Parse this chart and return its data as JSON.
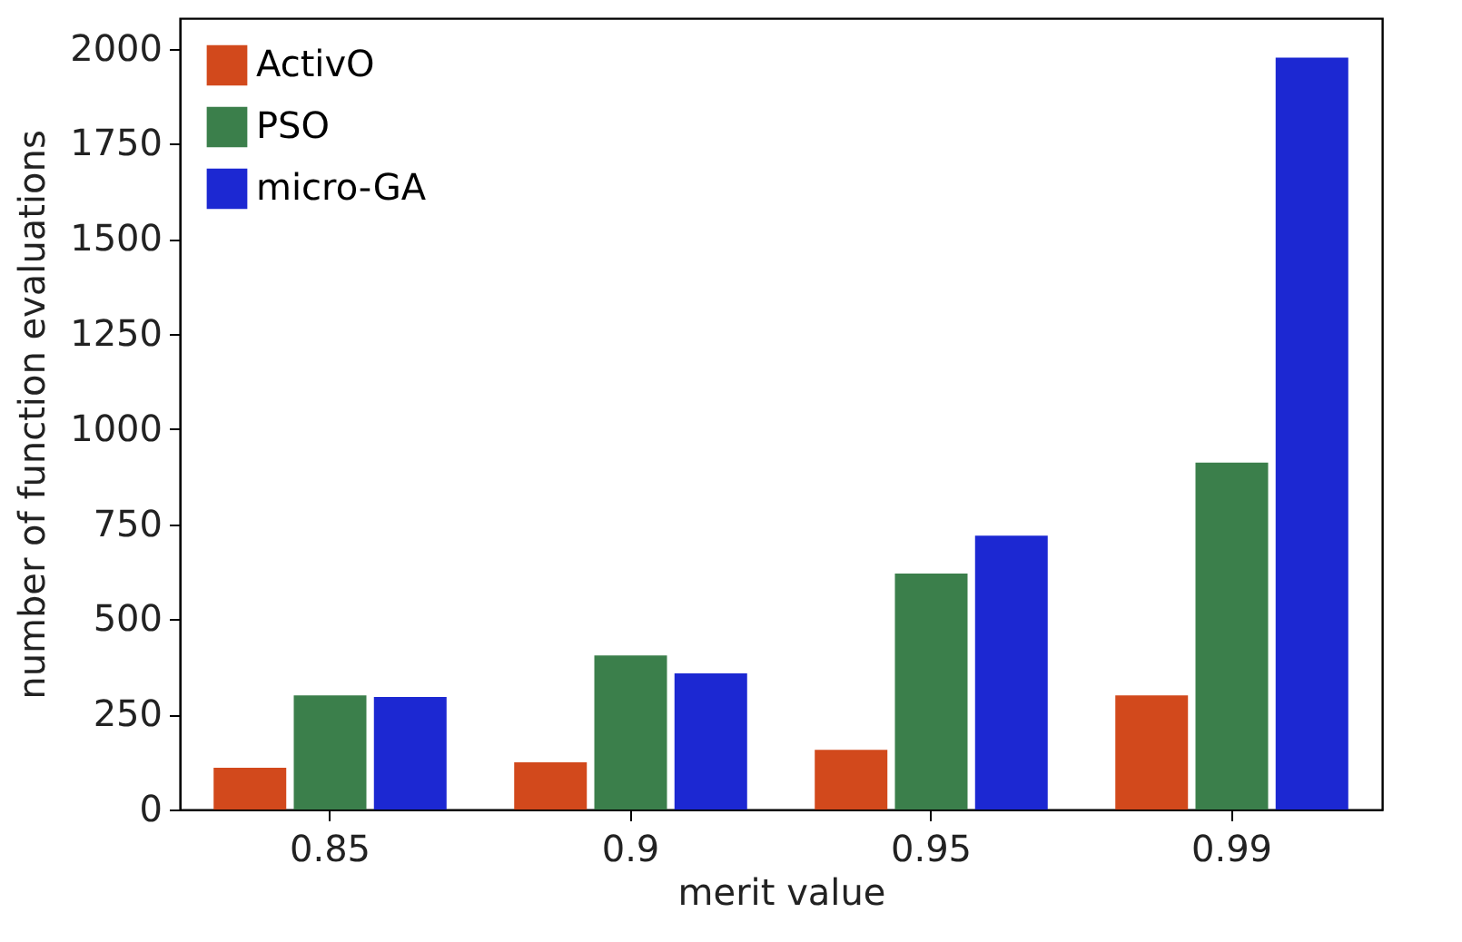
{
  "chart_data": {
    "type": "bar",
    "xlabel": "merit value",
    "ylabel": "number of function evaluations",
    "categories": [
      "0.85",
      "0.9",
      "0.95",
      "0.99"
    ],
    "series": [
      {
        "name": "ActivO",
        "color": "#d2491c",
        "values": [
          110,
          124,
          157,
          300
        ]
      },
      {
        "name": "PSO",
        "color": "#3b7f4b",
        "values": [
          300,
          405,
          620,
          912
        ]
      },
      {
        "name": "micro-GA",
        "color": "#1c28d2",
        "values": [
          296,
          358,
          720,
          1976
        ]
      }
    ],
    "ylim": [
      0,
      2080
    ],
    "yticks": [
      0,
      250,
      500,
      750,
      1000,
      1250,
      1500,
      1750,
      2000
    ],
    "grid": false,
    "legend": "top left"
  }
}
